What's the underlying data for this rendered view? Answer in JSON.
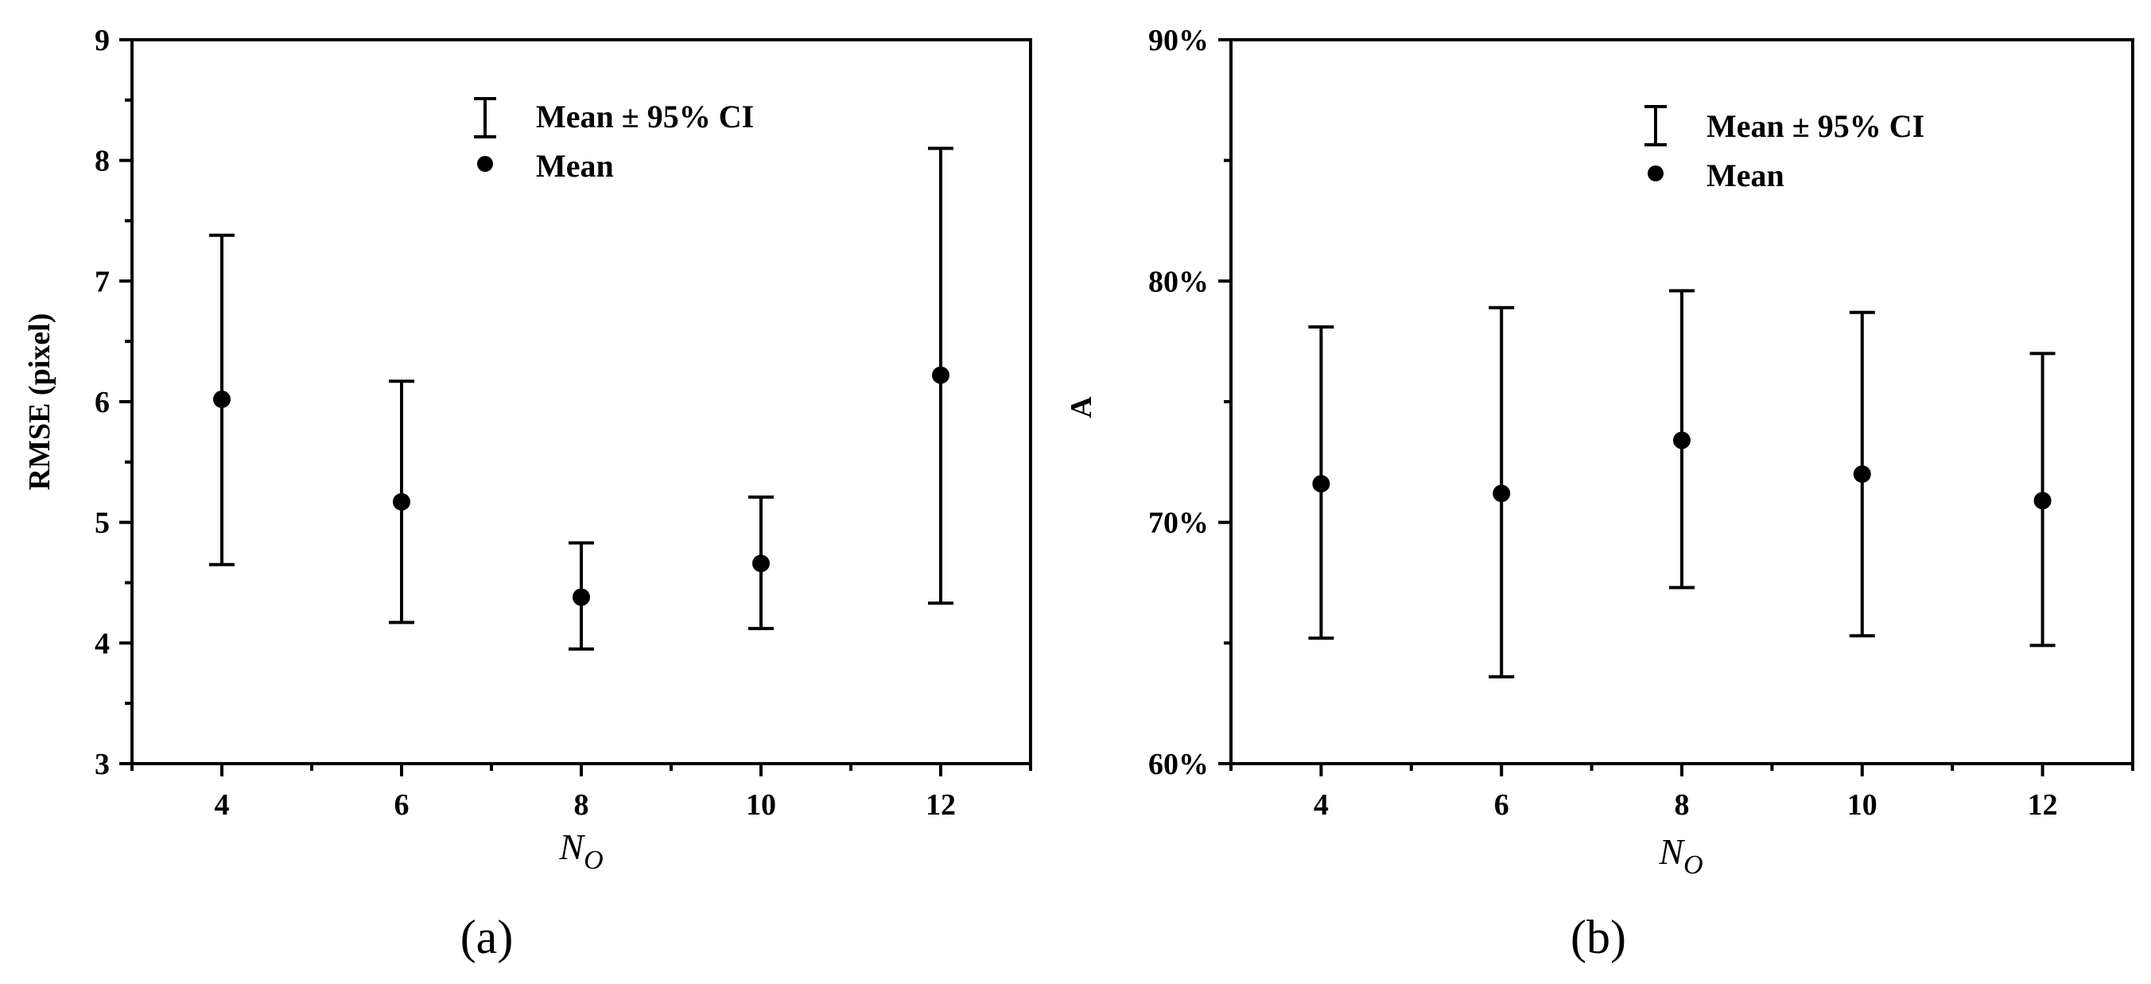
{
  "chart_data": [
    {
      "type": "scatter",
      "panel_label": "(a)",
      "xlabel": {
        "main": "N",
        "sub": "O"
      },
      "ylabel": "RMSE (pixel)",
      "x_ticks": [
        "4",
        "6",
        "8",
        "10",
        "12"
      ],
      "y_ticks": [
        "3",
        "4",
        "5",
        "6",
        "7",
        "8",
        "9"
      ],
      "xlim": [
        3,
        13
      ],
      "ylim": [
        3,
        9
      ],
      "legend": {
        "ci_label": "Mean ± 95% CI",
        "mean_label": "Mean",
        "position": "top-center"
      },
      "points": [
        {
          "x": 4,
          "mean": 6.02,
          "lower": 4.65,
          "upper": 7.38
        },
        {
          "x": 6,
          "mean": 5.17,
          "lower": 4.17,
          "upper": 6.17
        },
        {
          "x": 8,
          "mean": 4.38,
          "lower": 3.95,
          "upper": 4.83
        },
        {
          "x": 10,
          "mean": 4.66,
          "lower": 4.12,
          "upper": 5.21
        },
        {
          "x": 12,
          "mean": 6.22,
          "lower": 4.33,
          "upper": 8.1
        }
      ]
    },
    {
      "type": "scatter",
      "panel_label": "(b)",
      "xlabel": {
        "main": "N",
        "sub": "O"
      },
      "ylabel": "A",
      "x_ticks": [
        "4",
        "6",
        "8",
        "10",
        "12"
      ],
      "y_ticks": [
        "60%",
        "70%",
        "80%",
        "90%"
      ],
      "xlim": [
        3,
        13
      ],
      "ylim": [
        60,
        90
      ],
      "legend": {
        "ci_label": "Mean ± 95% CI",
        "mean_label": "Mean",
        "position": "top-right"
      },
      "points": [
        {
          "x": 4,
          "mean": 71.6,
          "lower": 65.2,
          "upper": 78.1
        },
        {
          "x": 6,
          "mean": 71.2,
          "lower": 63.6,
          "upper": 78.9
        },
        {
          "x": 8,
          "mean": 73.4,
          "lower": 67.3,
          "upper": 79.6
        },
        {
          "x": 10,
          "mean": 72.0,
          "lower": 65.3,
          "upper": 78.7
        },
        {
          "x": 12,
          "mean": 70.9,
          "lower": 64.9,
          "upper": 77.0
        }
      ]
    }
  ]
}
